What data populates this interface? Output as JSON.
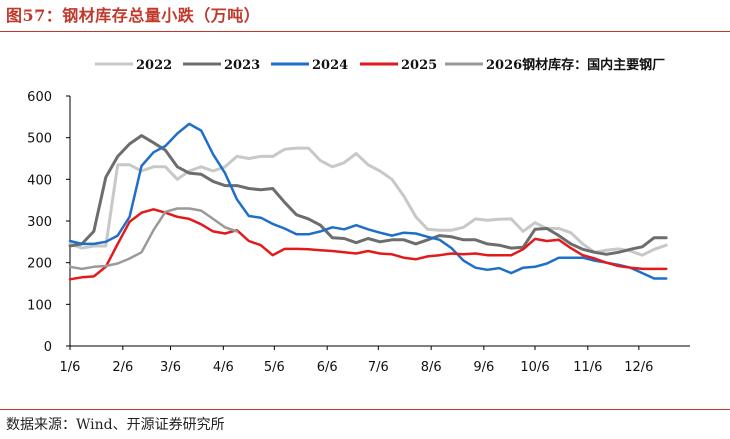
{
  "page": {
    "title": "图57：钢材库存总量小跌（万吨）",
    "source": "数据来源：Wind、开源证券研究所"
  },
  "chart_data": {
    "type": "line",
    "title": "",
    "xlabel": "",
    "ylabel": "",
    "ylim": [
      0,
      600
    ],
    "yticks": [
      0,
      100,
      200,
      300,
      400,
      500,
      600
    ],
    "xlim": [
      0,
      52
    ],
    "xticks": [
      {
        "label": "1/6",
        "x": 0
      },
      {
        "label": "2/6",
        "x": 4.43
      },
      {
        "label": "3/6",
        "x": 8.43
      },
      {
        "label": "4/6",
        "x": 12.86
      },
      {
        "label": "5/6",
        "x": 17.14
      },
      {
        "label": "6/6",
        "x": 21.57
      },
      {
        "label": "7/6",
        "x": 25.86
      },
      {
        "label": "8/6",
        "x": 30.29
      },
      {
        "label": "9/6",
        "x": 34.71
      },
      {
        "label": "10/6",
        "x": 39.0
      },
      {
        "label": "11/6",
        "x": 43.43
      },
      {
        "label": "12/6",
        "x": 47.71
      }
    ],
    "grid": false,
    "legend_position": "top",
    "series": [
      {
        "name": "2022",
        "color": "#c8c8c8",
        "width": 3,
        "values": [
          245,
          235,
          240,
          240,
          435,
          435,
          420,
          430,
          430,
          400,
          420,
          430,
          420,
          430,
          455,
          450,
          455,
          455,
          472,
          475,
          475,
          445,
          430,
          440,
          462,
          435,
          420,
          400,
          360,
          310,
          280,
          278,
          278,
          285,
          305,
          302,
          304,
          305,
          275,
          296,
          282,
          282,
          272,
          245,
          225,
          230,
          233,
          228,
          218,
          232,
          242
        ]
      },
      {
        "name": "2023",
        "color": "#6d6d6d",
        "width": 3,
        "values": [
          240,
          245,
          275,
          405,
          455,
          485,
          505,
          488,
          470,
          430,
          415,
          412,
          395,
          385,
          385,
          378,
          375,
          378,
          345,
          315,
          305,
          290,
          260,
          258,
          248,
          258,
          250,
          255,
          255,
          245,
          255,
          265,
          262,
          255,
          255,
          245,
          242,
          235,
          237,
          280,
          282,
          265,
          245,
          232,
          225,
          220,
          225,
          232,
          238,
          260,
          260
        ]
      },
      {
        "name": "2024",
        "color": "#1f6fc8",
        "width": 2.5,
        "values": [
          252,
          245,
          245,
          250,
          265,
          310,
          432,
          465,
          480,
          510,
          533,
          517,
          460,
          415,
          352,
          312,
          308,
          293,
          282,
          268,
          268,
          275,
          285,
          280,
          290,
          280,
          272,
          265,
          272,
          270,
          262,
          255,
          235,
          205,
          188,
          183,
          187,
          175,
          188,
          190,
          198,
          212,
          212,
          212,
          205,
          200,
          195,
          188,
          175,
          162,
          162
        ]
      },
      {
        "name": "2025",
        "color": "#e31a1c",
        "width": 2.5,
        "values": [
          160,
          165,
          167,
          190,
          245,
          298,
          320,
          328,
          320,
          310,
          305,
          292,
          275,
          270,
          278,
          252,
          242,
          218,
          233,
          233,
          232,
          230,
          228,
          225,
          222,
          228,
          222,
          220,
          212,
          208,
          215,
          218,
          222,
          220,
          222,
          218,
          218,
          218,
          232,
          257,
          252,
          255,
          235,
          218,
          210,
          200,
          192,
          188,
          185,
          185,
          185
        ]
      },
      {
        "name": "2026钢材库存：国内主要钢厂",
        "color": "#9a9a9a",
        "width": 2.5,
        "values": [
          190,
          185,
          190,
          192,
          198,
          210,
          225,
          278,
          322,
          330,
          330,
          325,
          305,
          285,
          275,
          null,
          null,
          null,
          null,
          null,
          null,
          null,
          null,
          null,
          null,
          null,
          null,
          null,
          null,
          null,
          null,
          null,
          null,
          null,
          null,
          null,
          null,
          null,
          null,
          null,
          null,
          null,
          null,
          null,
          null,
          null,
          null,
          null,
          null,
          null,
          null
        ]
      }
    ]
  }
}
